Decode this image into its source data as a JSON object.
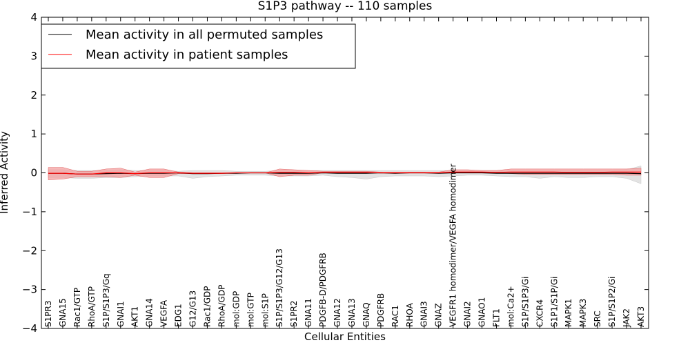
{
  "chart_data": {
    "type": "line",
    "title": "S1P3 pathway -- 110 samples",
    "xlabel": "Cellular Entities",
    "ylabel": "Inferred Activity",
    "ylim": [
      -4,
      4
    ],
    "yticks": [
      -4,
      -3,
      -2,
      -1,
      0,
      1,
      2,
      3,
      4
    ],
    "ytick_labels": [
      "−4",
      "−3",
      "−2",
      "−1",
      "0",
      "1",
      "2",
      "3",
      "4"
    ],
    "legend_position": "upper-left",
    "categories": [
      "S1PR3",
      "GNA15",
      "Rac1/GTP",
      "RhoA/GTP",
      "S1P/S1P3/Gq",
      "GNAI1",
      "AKT1",
      "GNA14",
      "VEGFA",
      "EDG1",
      "G12/G13",
      "Rac1/GDP",
      "RhoA/GDP",
      "mol:GDP",
      "mol:GTP",
      "mol:S1P",
      "S1P/S1P3/G12/G13",
      "S1PR2",
      "GNA11",
      "PDGFB-D/PDGFRB",
      "GNA12",
      "GNA13",
      "GNAQ",
      "PDGFRB",
      "RAC1",
      "RHOA",
      "GNAI3",
      "GNAZ",
      "VEGFR1 homodimer/VEGFA homodimer",
      "GNAI2",
      "GNAO1",
      "FLT1",
      "mol:Ca2+",
      "S1P/S1P3/Gi",
      "CXCR4",
      "S1P1/S1P/Gi",
      "MAPK1",
      "MAPK3",
      "SRC",
      "S1P/S1P2/Gi",
      "JAK2",
      "AKT3"
    ],
    "series": [
      {
        "name": "Mean activity in all permuted samples",
        "color": "#000000",
        "values": [
          -0.01,
          -0.01,
          -0.03,
          -0.03,
          -0.02,
          -0.01,
          -0.02,
          -0.01,
          -0.01,
          0.0,
          -0.02,
          -0.02,
          -0.01,
          -0.01,
          0.0,
          0.0,
          -0.01,
          -0.01,
          -0.01,
          0.0,
          -0.01,
          -0.01,
          -0.01,
          0.0,
          -0.01,
          0.0,
          0.0,
          -0.01,
          0.0,
          0.0,
          0.0,
          -0.01,
          -0.01,
          -0.01,
          -0.01,
          -0.01,
          -0.01,
          -0.01,
          -0.01,
          -0.01,
          -0.01,
          -0.02
        ],
        "band_low": [
          -0.12,
          -0.12,
          -0.14,
          -0.14,
          -0.12,
          -0.12,
          -0.1,
          -0.08,
          -0.08,
          -0.08,
          -0.14,
          -0.1,
          -0.08,
          -0.06,
          -0.06,
          -0.06,
          -0.08,
          -0.08,
          -0.08,
          -0.06,
          -0.1,
          -0.12,
          -0.16,
          -0.1,
          -0.08,
          -0.08,
          -0.08,
          -0.1,
          -0.08,
          -0.06,
          -0.06,
          -0.08,
          -0.1,
          -0.1,
          -0.14,
          -0.1,
          -0.12,
          -0.12,
          -0.1,
          -0.1,
          -0.14,
          -0.28
        ],
        "band_high": [
          0.08,
          0.08,
          0.06,
          0.06,
          0.06,
          0.08,
          0.06,
          0.06,
          0.06,
          0.04,
          0.06,
          0.06,
          0.06,
          0.04,
          0.04,
          0.04,
          0.06,
          0.06,
          0.06,
          0.06,
          0.06,
          0.06,
          0.06,
          0.06,
          0.06,
          0.06,
          0.06,
          0.06,
          0.06,
          0.06,
          0.06,
          0.06,
          0.06,
          0.06,
          0.06,
          0.06,
          0.06,
          0.06,
          0.06,
          0.06,
          0.08,
          0.18
        ]
      },
      {
        "name": "Mean activity in patient samples",
        "color": "#ff0000",
        "values": [
          -0.01,
          -0.01,
          -0.03,
          -0.03,
          0.0,
          0.0,
          -0.02,
          0.0,
          0.0,
          0.0,
          -0.01,
          -0.01,
          -0.01,
          0.0,
          0.0,
          0.0,
          0.01,
          0.01,
          0.0,
          0.01,
          0.01,
          0.01,
          0.01,
          0.0,
          0.0,
          0.0,
          0.0,
          0.0,
          0.02,
          0.02,
          0.02,
          0.01,
          0.02,
          0.02,
          0.02,
          0.02,
          0.01,
          0.01,
          0.01,
          0.02,
          0.02,
          0.02
        ],
        "band_low": [
          -0.18,
          -0.16,
          -0.1,
          -0.1,
          -0.1,
          -0.12,
          -0.06,
          -0.12,
          -0.12,
          -0.02,
          -0.02,
          -0.02,
          -0.02,
          0.0,
          0.0,
          0.0,
          -0.1,
          -0.06,
          -0.06,
          0.0,
          0.0,
          0.0,
          0.0,
          0.0,
          0.0,
          0.0,
          0.0,
          0.0,
          0.0,
          0.0,
          0.0,
          0.0,
          -0.02,
          -0.04,
          -0.04,
          -0.04,
          -0.04,
          -0.04,
          -0.04,
          -0.04,
          -0.06,
          -0.06
        ],
        "band_high": [
          0.14,
          0.14,
          0.04,
          0.04,
          0.1,
          0.12,
          0.02,
          0.1,
          0.1,
          0.02,
          0.0,
          0.0,
          0.0,
          0.0,
          0.0,
          0.0,
          0.1,
          0.08,
          0.06,
          0.04,
          0.04,
          0.04,
          0.04,
          0.02,
          0.02,
          0.02,
          0.02,
          0.02,
          0.08,
          0.08,
          0.06,
          0.06,
          0.1,
          0.1,
          0.1,
          0.1,
          0.1,
          0.1,
          0.1,
          0.1,
          0.1,
          0.12
        ]
      }
    ],
    "permuted_band_color": "#e0e0e0",
    "patient_band_color": "#f4a0a0"
  }
}
